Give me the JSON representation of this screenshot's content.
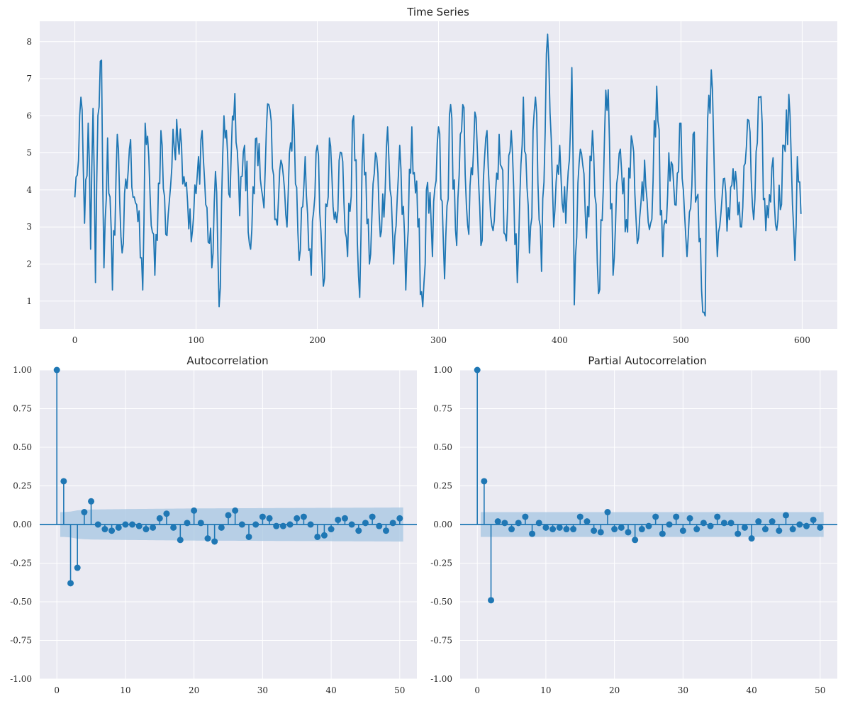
{
  "chart_data": [
    {
      "type": "line",
      "title": "Time Series",
      "xlabel": "",
      "ylabel": "",
      "xlim": [
        -29,
        629
      ],
      "ylim": [
        0.25,
        8.55
      ],
      "xticks": [
        0,
        100,
        200,
        300,
        400,
        500,
        600
      ],
      "yticks": [
        1,
        2,
        3,
        4,
        5,
        6,
        7,
        8
      ],
      "grid": true,
      "color": "#1f77b4",
      "n_points": 600,
      "series": [
        {
          "anchors": [
            [
              0,
              3.8
            ],
            [
              2,
              4.4
            ],
            [
              5,
              6.5
            ],
            [
              8,
              3.1
            ],
            [
              11,
              5.8
            ],
            [
              13,
              2.4
            ],
            [
              15,
              6.2
            ],
            [
              17,
              1.5
            ],
            [
              19,
              6.0
            ],
            [
              22,
              7.5
            ],
            [
              24,
              1.9
            ],
            [
              27,
              5.4
            ],
            [
              31,
              1.3
            ],
            [
              35,
              5.5
            ],
            [
              39,
              2.3
            ],
            [
              45,
              5.1
            ],
            [
              51,
              3.6
            ],
            [
              56,
              1.3
            ],
            [
              58,
              5.8
            ],
            [
              62,
              3.9
            ],
            [
              66,
              1.7
            ],
            [
              71,
              5.6
            ],
            [
              75,
              2.8
            ],
            [
              80,
              4.6
            ],
            [
              84,
              5.9
            ],
            [
              88,
              5.2
            ],
            [
              92,
              4.2
            ],
            [
              96,
              2.6
            ],
            [
              100,
              3.9
            ],
            [
              105,
              5.6
            ],
            [
              108,
              3.6
            ],
            [
              113,
              1.9
            ],
            [
              116,
              4.5
            ],
            [
              119,
              0.85
            ],
            [
              123,
              6.0
            ],
            [
              128,
              3.8
            ],
            [
              132,
              6.6
            ],
            [
              136,
              3.3
            ],
            [
              140,
              5.2
            ],
            [
              145,
              2.4
            ],
            [
              150,
              5.4
            ],
            [
              155,
              3.8
            ],
            [
              160,
              6.3
            ],
            [
              165,
              3.2
            ],
            [
              170,
              4.8
            ],
            [
              175,
              3.0
            ],
            [
              180,
              6.3
            ],
            [
              185,
              2.1
            ],
            [
              190,
              4.9
            ],
            [
              195,
              1.7
            ],
            [
              200,
              5.2
            ],
            [
              205,
              1.4
            ],
            [
              210,
              5.4
            ],
            [
              215,
              3.4
            ],
            [
              220,
              5.0
            ],
            [
              225,
              2.2
            ],
            [
              230,
              6.0
            ],
            [
              235,
              1.1
            ],
            [
              238,
              5.5
            ],
            [
              243,
              2.0
            ],
            [
              248,
              5.0
            ],
            [
              253,
              2.9
            ],
            [
              258,
              5.7
            ],
            [
              263,
              2.0
            ],
            [
              268,
              5.2
            ],
            [
              273,
              1.3
            ],
            [
              278,
              5.7
            ],
            [
              283,
              3.0
            ],
            [
              287,
              0.85
            ],
            [
              291,
              4.2
            ],
            [
              295,
              2.2
            ],
            [
              300,
              5.7
            ],
            [
              305,
              1.6
            ],
            [
              310,
              6.3
            ],
            [
              315,
              2.5
            ],
            [
              320,
              6.3
            ],
            [
              325,
              2.8
            ],
            [
              330,
              6.1
            ],
            [
              335,
              2.5
            ],
            [
              340,
              5.6
            ],
            [
              345,
              2.9
            ],
            [
              350,
              5.5
            ],
            [
              355,
              2.8
            ],
            [
              360,
              5.6
            ],
            [
              365,
              1.5
            ],
            [
              370,
              6.5
            ],
            [
              375,
              2.3
            ],
            [
              380,
              6.5
            ],
            [
              385,
              1.8
            ],
            [
              390,
              8.2
            ],
            [
              395,
              3.0
            ],
            [
              400,
              5.2
            ],
            [
              405,
              3.1
            ],
            [
              410,
              7.3
            ],
            [
              412,
              0.9
            ],
            [
              417,
              5.1
            ],
            [
              422,
              2.7
            ],
            [
              427,
              5.6
            ],
            [
              432,
              1.2
            ],
            [
              437,
              5.5
            ],
            [
              440,
              6.7
            ],
            [
              444,
              1.7
            ],
            [
              450,
              5.1
            ],
            [
              455,
              3.2
            ],
            [
              460,
              5.3
            ],
            [
              465,
              2.7
            ],
            [
              470,
              4.8
            ],
            [
              475,
              3.1
            ],
            [
              480,
              6.8
            ],
            [
              485,
              2.2
            ],
            [
              490,
              5.0
            ],
            [
              495,
              3.6
            ],
            [
              500,
              5.8
            ],
            [
              505,
              2.2
            ],
            [
              510,
              5.5
            ],
            [
              515,
              2.6
            ],
            [
              520,
              0.6
            ],
            [
              522,
              5.9
            ],
            [
              526,
              6.7
            ],
            [
              530,
              2.2
            ],
            [
              535,
              4.3
            ],
            [
              540,
              3.2
            ],
            [
              545,
              4.5
            ],
            [
              550,
              3.0
            ],
            [
              555,
              5.9
            ],
            [
              560,
              3.2
            ],
            [
              565,
              6.5
            ],
            [
              570,
              2.9
            ],
            [
              575,
              4.6
            ],
            [
              580,
              3.2
            ],
            [
              585,
              5.2
            ],
            [
              590,
              6.0
            ],
            [
              594,
              2.1
            ],
            [
              596,
              4.9
            ],
            [
              599,
              3.35
            ]
          ]
        }
      ]
    },
    {
      "type": "stem",
      "title": "Autocorrelation",
      "xlabel": "",
      "ylabel": "",
      "xlim": [
        -2.5,
        52.5
      ],
      "ylim": [
        -1.0,
        1.0
      ],
      "xticks": [
        0,
        10,
        20,
        30,
        40,
        50
      ],
      "yticks": [
        1.0,
        0.75,
        0.5,
        0.25,
        0.0,
        -0.25,
        -0.5,
        -0.75,
        -1.0
      ],
      "grid": true,
      "color": "#1f77b4",
      "band_color": "#a6c6e1",
      "lags": [
        0,
        1,
        2,
        3,
        4,
        5,
        6,
        7,
        8,
        9,
        10,
        11,
        12,
        13,
        14,
        15,
        16,
        17,
        18,
        19,
        20,
        21,
        22,
        23,
        24,
        25,
        26,
        27,
        28,
        29,
        30,
        31,
        32,
        33,
        34,
        35,
        36,
        37,
        38,
        39,
        40,
        41,
        42,
        43,
        44,
        45,
        46,
        47,
        48,
        49,
        50
      ],
      "values": [
        1.0,
        0.28,
        -0.38,
        -0.28,
        0.08,
        0.15,
        0.0,
        -0.03,
        -0.04,
        -0.02,
        0.0,
        0.0,
        -0.01,
        -0.03,
        -0.02,
        0.04,
        0.07,
        -0.02,
        -0.1,
        0.01,
        0.09,
        0.01,
        -0.09,
        -0.11,
        -0.02,
        0.06,
        0.09,
        0.0,
        -0.08,
        0.0,
        0.05,
        0.04,
        -0.01,
        -0.01,
        0.0,
        0.04,
        0.05,
        0.0,
        -0.08,
        -0.07,
        -0.03,
        0.03,
        0.04,
        0.0,
        -0.04,
        0.01,
        0.05,
        -0.01,
        -0.04,
        0.01,
        0.04
      ],
      "conf_band": {
        "lags": [
          1,
          2,
          3,
          4,
          5,
          10,
          20,
          30,
          40,
          50
        ],
        "half_width": [
          0.08,
          0.084,
          0.092,
          0.095,
          0.097,
          0.1,
          0.104,
          0.106,
          0.108,
          0.11
        ]
      }
    },
    {
      "type": "stem",
      "title": "Partial Autocorrelation",
      "xlabel": "",
      "ylabel": "",
      "xlim": [
        -2.5,
        52.5
      ],
      "ylim": [
        -1.0,
        1.0
      ],
      "xticks": [
        0,
        10,
        20,
        30,
        40,
        50
      ],
      "yticks": [
        1.0,
        0.75,
        0.5,
        0.25,
        0.0,
        -0.25,
        -0.5,
        -0.75,
        -1.0
      ],
      "grid": true,
      "color": "#1f77b4",
      "band_color": "#a6c6e1",
      "lags": [
        0,
        1,
        2,
        3,
        4,
        5,
        6,
        7,
        8,
        9,
        10,
        11,
        12,
        13,
        14,
        15,
        16,
        17,
        18,
        19,
        20,
        21,
        22,
        23,
        24,
        25,
        26,
        27,
        28,
        29,
        30,
        31,
        32,
        33,
        34,
        35,
        36,
        37,
        38,
        39,
        40,
        41,
        42,
        43,
        44,
        45,
        46,
        47,
        48,
        49,
        50
      ],
      "values": [
        1.0,
        0.28,
        -0.49,
        0.02,
        0.01,
        -0.03,
        0.01,
        0.05,
        -0.06,
        0.01,
        -0.02,
        -0.03,
        -0.02,
        -0.03,
        -0.03,
        0.05,
        0.02,
        -0.04,
        -0.05,
        0.08,
        -0.03,
        -0.02,
        -0.05,
        -0.1,
        -0.03,
        -0.01,
        0.05,
        -0.06,
        0.0,
        0.05,
        -0.04,
        0.04,
        -0.03,
        0.01,
        -0.01,
        0.05,
        0.01,
        0.01,
        -0.06,
        -0.02,
        -0.09,
        0.02,
        -0.03,
        0.02,
        -0.04,
        0.06,
        -0.03,
        0.0,
        -0.01,
        0.03,
        -0.02
      ],
      "conf_band": {
        "lags": [
          1,
          50
        ],
        "half_width": [
          0.08,
          0.08
        ]
      }
    }
  ]
}
